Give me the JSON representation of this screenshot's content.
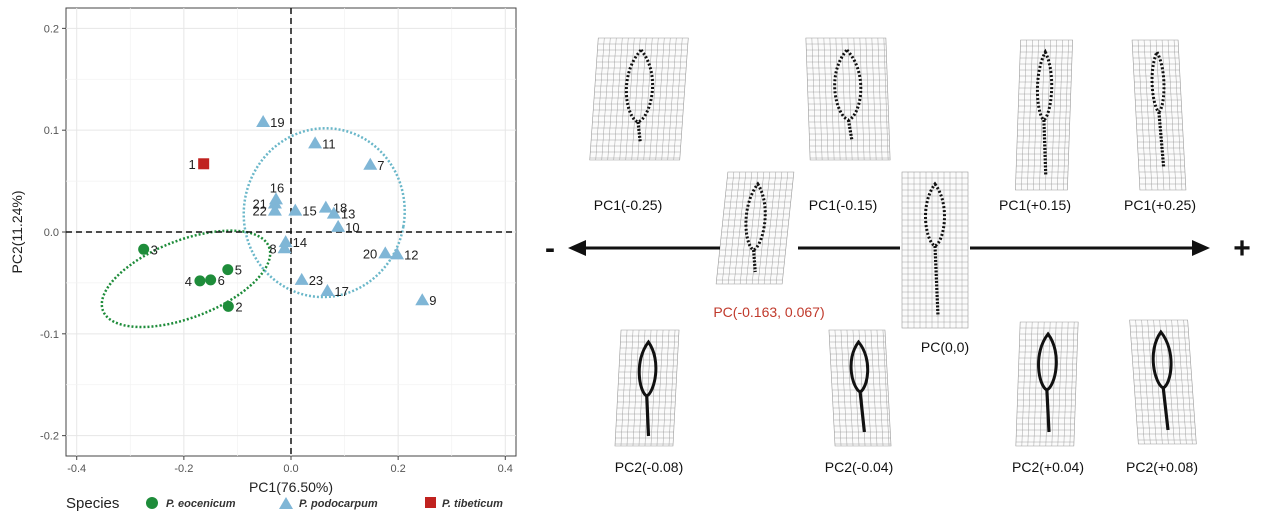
{
  "chart_data": {
    "type": "scatter",
    "xlabel": "PC1(76.50%)",
    "ylabel": "PC2(11.24%)",
    "xlim": [
      -0.42,
      0.42
    ],
    "ylim": [
      -0.22,
      0.22
    ],
    "x_ticks": [
      -0.4,
      -0.2,
      0.0,
      0.2,
      0.4
    ],
    "y_ticks": [
      -0.2,
      -0.1,
      0.0,
      0.1,
      0.2
    ],
    "x_tick_labels": [
      "-0.4",
      "-0.2",
      "0.0",
      "0.2",
      "0.4"
    ],
    "y_tick_labels": [
      "-0.2",
      "-0.1",
      "0.0",
      "0.1",
      "0.2"
    ],
    "grid": true,
    "legend_title": "Species",
    "legend_position": "bottom",
    "series": [
      {
        "name": "P. eocenicum",
        "color": "#1e8c3a",
        "marker": "circle",
        "points": [
          {
            "label": "3",
            "x": -0.275,
            "y": -0.017
          },
          {
            "label": "4",
            "x": -0.17,
            "y": -0.048
          },
          {
            "label": "6",
            "x": -0.15,
            "y": -0.047
          },
          {
            "label": "5",
            "x": -0.118,
            "y": -0.037
          },
          {
            "label": "2",
            "x": -0.117,
            "y": -0.073
          }
        ]
      },
      {
        "name": "P. podocarpum",
        "color": "#7fb6d6",
        "marker": "triangle",
        "points": [
          {
            "label": "19",
            "x": -0.052,
            "y": 0.108
          },
          {
            "label": "11",
            "x": 0.045,
            "y": 0.087
          },
          {
            "label": "7",
            "x": 0.148,
            "y": 0.066
          },
          {
            "label": "16",
            "x": -0.028,
            "y": 0.032
          },
          {
            "label": "21",
            "x": -0.03,
            "y": 0.028
          },
          {
            "label": "22",
            "x": -0.03,
            "y": 0.021
          },
          {
            "label": "15",
            "x": 0.008,
            "y": 0.021
          },
          {
            "label": "18",
            "x": 0.065,
            "y": 0.024
          },
          {
            "label": "13",
            "x": 0.08,
            "y": 0.018
          },
          {
            "label": "10",
            "x": 0.088,
            "y": 0.005
          },
          {
            "label": "14",
            "x": -0.01,
            "y": -0.01
          },
          {
            "label": "8",
            "x": -0.012,
            "y": -0.016
          },
          {
            "label": "20",
            "x": 0.176,
            "y": -0.021
          },
          {
            "label": "12",
            "x": 0.198,
            "y": -0.022
          },
          {
            "label": "23",
            "x": 0.02,
            "y": -0.047
          },
          {
            "label": "17",
            "x": 0.068,
            "y": -0.058
          },
          {
            "label": "9",
            "x": 0.245,
            "y": -0.067
          }
        ]
      },
      {
        "name": "P. tibeticum",
        "color": "#c0221f",
        "marker": "square",
        "points": [
          {
            "label": "1",
            "x": -0.163,
            "y": 0.067
          }
        ]
      }
    ],
    "ellipses": [
      {
        "series": "P. eocenicum",
        "color": "#1e8c3a",
        "cx": -0.196,
        "cy": -0.046,
        "rx": 0.166,
        "ry": 0.038,
        "angle_deg": 21
      },
      {
        "series": "P. podocarpum",
        "color": "#6ab7c9",
        "cx": 0.062,
        "cy": 0.019,
        "rx": 0.15,
        "ry": 0.083,
        "angle_deg": -10
      }
    ]
  },
  "shape_panel": {
    "minus_sign": "-",
    "plus_sign": "+",
    "pc1_labels": [
      "PC1(-0.25)",
      "PC1(-0.15)",
      "PC1(+0.15)",
      "PC1(+0.25)"
    ],
    "pc2_labels": [
      "PC2(-0.08)",
      "PC2(-0.04)",
      "PC2(+0.04)",
      "PC2(+0.08)"
    ],
    "highlight_label": "PC(-0.163, 0.067)",
    "highlight_color": "#c0392b",
    "center_label": "PC(0,0)"
  }
}
